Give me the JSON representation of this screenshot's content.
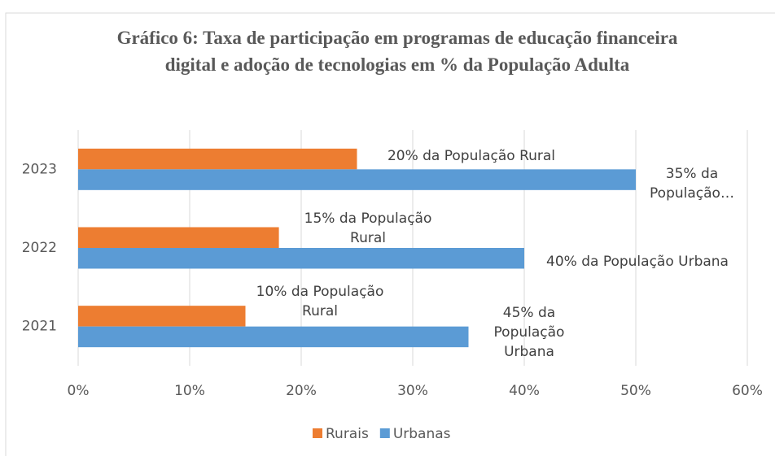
{
  "chart_data": {
    "type": "hbar",
    "title": "Gráfico 6: Taxa de participação em programas de educação financeira digital e adoção de tecnologias em % da População Adulta",
    "categories": [
      "2021",
      "2022",
      "2023"
    ],
    "series": [
      {
        "name": "Rurais",
        "color": "#ed7d31",
        "values": [
          15,
          18,
          25
        ],
        "annotations": [
          "10% da População Rural",
          "15% da População Rural",
          "20% da População Rural"
        ]
      },
      {
        "name": "Urbanas",
        "color": "#5b9bd5",
        "values": [
          35,
          40,
          50
        ],
        "annotations": [
          "45% da População Urbana",
          "40% da População Urbana",
          "35% da População…"
        ]
      }
    ],
    "xlim": [
      0,
      60
    ],
    "xticks": [
      {
        "value": 0,
        "label": "0%"
      },
      {
        "value": 10,
        "label": "10%"
      },
      {
        "value": 20,
        "label": "20%"
      },
      {
        "value": 30,
        "label": "30%"
      },
      {
        "value": 40,
        "label": "40%"
      },
      {
        "value": 50,
        "label": "50%"
      },
      {
        "value": 60,
        "label": "60%"
      }
    ],
    "grid": true,
    "legend": "bottom"
  }
}
